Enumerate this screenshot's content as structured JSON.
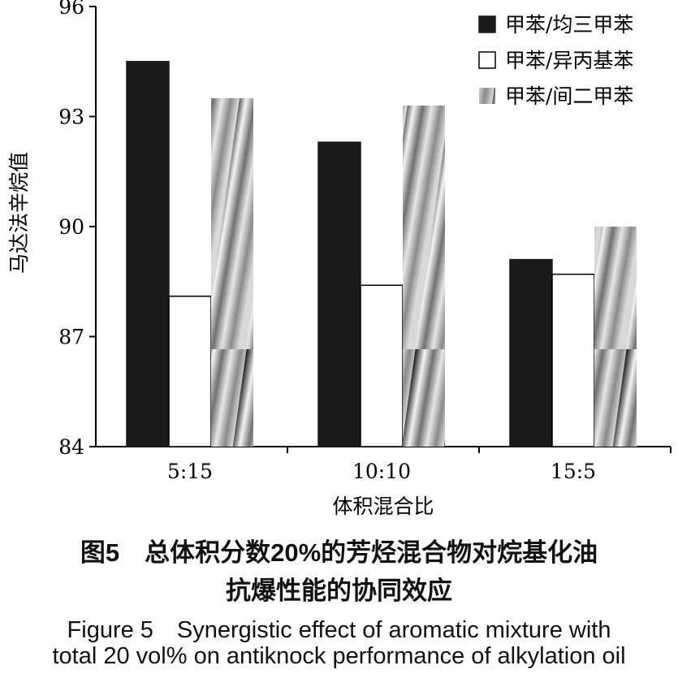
{
  "chart_data": {
    "type": "bar",
    "xlabel": "体积混合比",
    "ylabel": "马达法辛烷值",
    "ylim": [
      84,
      96
    ],
    "yticks": [
      84,
      87,
      90,
      93,
      96
    ],
    "categories": [
      "5:15",
      "10:10",
      "15:5"
    ],
    "series": [
      {
        "name": "甲苯/均三甲苯",
        "values": [
          94.5,
          92.3,
          89.1
        ],
        "color": "#1a1a1a",
        "fill": "solid"
      },
      {
        "name": "甲苯/异丙基苯",
        "values": [
          88.1,
          88.4,
          88.7
        ],
        "color": "#ffffff",
        "fill": "outline"
      },
      {
        "name": "甲苯/间二甲苯",
        "values": [
          93.5,
          93.3,
          90.0
        ],
        "color": "#b0b0b0",
        "fill": "hatch-gradient"
      }
    ],
    "legend_position": "top-right",
    "grid": false
  },
  "caption": {
    "zh_line1": "图5　总体积分数20%的芳烃混合物对烷基化油",
    "zh_line2": "抗爆性能的协同效应",
    "en_line1": "Figure 5　Synergistic effect of aromatic mixture with",
    "en_line2": "total 20 vol% on antiknock performance of alkylation oil"
  }
}
